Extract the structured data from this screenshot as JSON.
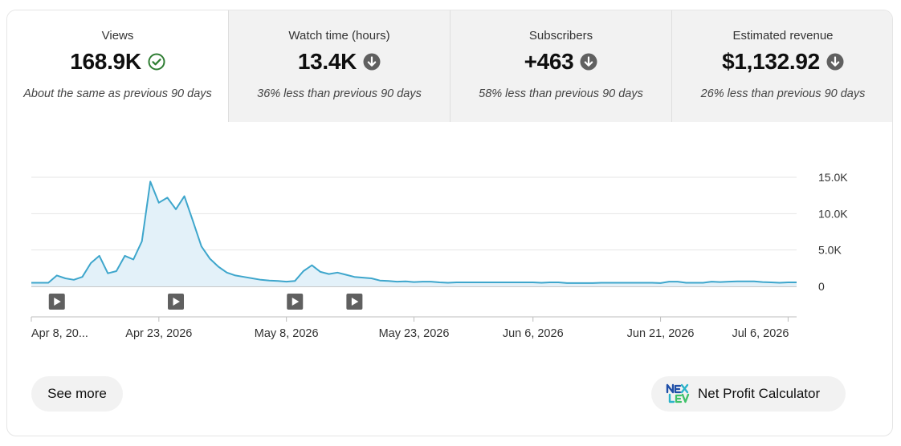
{
  "tabs": [
    {
      "label": "Views",
      "value": "168.9K",
      "icon": "check-circle-icon",
      "compare": "About the same as previous 90 days",
      "selected": true
    },
    {
      "label": "Watch time (hours)",
      "value": "13.4K",
      "icon": "arrow-down-circle-icon",
      "compare": "36% less than previous 90 days",
      "selected": false
    },
    {
      "label": "Subscribers",
      "value": "+463",
      "icon": "arrow-down-circle-icon",
      "compare": "58% less than previous 90 days",
      "selected": false
    },
    {
      "label": "Estimated revenue",
      "value": "$1,132.92",
      "icon": "arrow-down-circle-icon",
      "compare": "26% less than previous 90 days",
      "selected": false
    }
  ],
  "colors": {
    "line": "#3ea6cc",
    "fill": "#e3f1f9",
    "check": "#2e7d32",
    "down": "#606060",
    "grid": "#e5e5e5",
    "axis": "#909090",
    "marker": "#606060"
  },
  "chart_data": {
    "type": "area",
    "yticks": [
      "15.0K",
      "10.0K",
      "5.0K",
      "0"
    ],
    "ylim": [
      0,
      15000
    ],
    "grid": true,
    "xticks": [
      {
        "day": 0,
        "label": "Apr 8, 20..."
      },
      {
        "day": 15,
        "label": "Apr 23, 2026"
      },
      {
        "day": 30,
        "label": "May 8, 2026"
      },
      {
        "day": 45,
        "label": "May 23, 2026"
      },
      {
        "day": 59,
        "label": "Jun 6, 2026"
      },
      {
        "day": 74,
        "label": "Jun 21, 2026"
      },
      {
        "day": 89,
        "label": "Jul 6, 2026"
      }
    ],
    "markers_days": [
      3,
      17,
      31,
      38
    ],
    "series": [
      {
        "values": [
          500,
          500,
          500,
          1500,
          1100,
          900,
          1300,
          3200,
          4200,
          1800,
          2100,
          4200,
          3700,
          6200,
          14400,
          11500,
          12200,
          10600,
          12400,
          9000,
          5500,
          3800,
          2700,
          1900,
          1500,
          1300,
          1100,
          900,
          800,
          750,
          650,
          750,
          2100,
          2900,
          2000,
          1700,
          1900,
          1600,
          1300,
          1200,
          1100,
          800,
          750,
          650,
          700,
          600,
          650,
          650,
          550,
          500,
          550,
          550,
          550,
          550,
          550,
          550,
          550,
          550,
          550,
          550,
          500,
          550,
          550,
          450,
          450,
          450,
          450,
          500,
          500,
          500,
          500,
          500,
          500,
          500,
          450,
          650,
          650,
          500,
          500,
          500,
          650,
          600,
          650,
          700,
          700,
          700,
          600,
          550,
          500,
          550,
          550
        ]
      }
    ]
  },
  "buttons": {
    "see_more": "See more",
    "net_profit": "Net Profit Calculator"
  }
}
